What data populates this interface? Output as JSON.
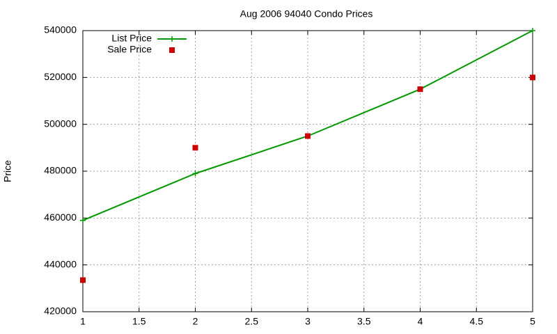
{
  "chart_data": {
    "type": "line",
    "title": "Aug 2006 94040 Condo Prices",
    "y_label": "Price",
    "x": [
      1,
      2,
      3,
      4,
      5
    ],
    "series": [
      {
        "name": "List Price",
        "color": "#009900",
        "marker": "plus",
        "line": true,
        "values": [
          459000,
          479000,
          495000,
          515000,
          540000
        ]
      },
      {
        "name": "Sale Price",
        "color": "#cc0000",
        "marker": "square",
        "line": false,
        "values": [
          433500,
          490000,
          495000,
          515000,
          520000
        ]
      }
    ],
    "xlim": [
      1,
      5
    ],
    "xticks": [
      1,
      1.5,
      2,
      2.5,
      3,
      3.5,
      4,
      4.5,
      5
    ],
    "ylim": [
      420000,
      540000
    ],
    "yticks": [
      420000,
      440000,
      460000,
      480000,
      500000,
      520000,
      540000
    ],
    "grid": true,
    "legend": "top-left"
  }
}
